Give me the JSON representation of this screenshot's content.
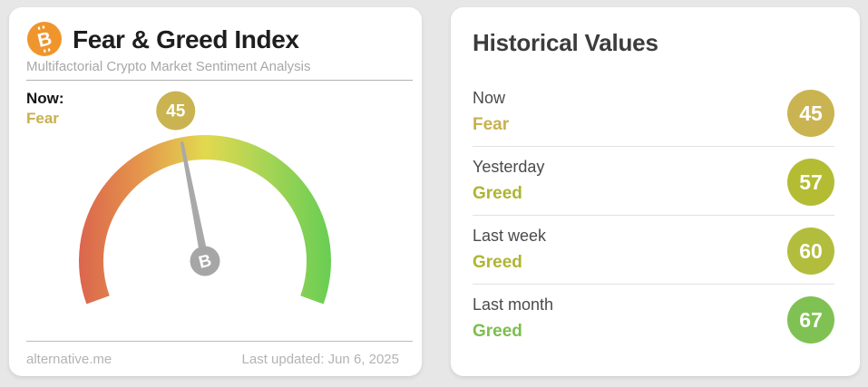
{
  "page": {
    "background_color": "#e7e7e7"
  },
  "gauge_card": {
    "icon": {
      "glyph": "B",
      "color": "#f0952c"
    },
    "title": "Fear & Greed Index",
    "subtitle": "Multifactorial Crypto Market Sentiment Analysis",
    "now": {
      "label": "Now:",
      "classification": "Fear",
      "color": "#c8b04e"
    },
    "gauge": {
      "value": 45,
      "min": 0,
      "max": 100,
      "start_angle_deg": 200,
      "span_deg": 220,
      "badge_color": "#c9b451",
      "needle_color": "#a9a9a9",
      "hub_color": "#a6a6a6",
      "hub_glyph": "B",
      "arc_colors": [
        "#db654d",
        "#e5974c",
        "#e2d94f",
        "#a5d455",
        "#68ce53"
      ]
    },
    "footer": {
      "source": "alternative.me",
      "last_updated": "Last updated: Jun 6, 2025"
    }
  },
  "history_card": {
    "title": "Historical Values",
    "rows": [
      {
        "label": "Now",
        "classification": "Fear",
        "value": "45",
        "badge_color": "#c9b451",
        "classification_color": "#c8b04e"
      },
      {
        "label": "Yesterday",
        "classification": "Greed",
        "value": "57",
        "badge_color": "#b4bc34",
        "classification_color": "#aeb531"
      },
      {
        "label": "Last week",
        "classification": "Greed",
        "value": "60",
        "badge_color": "#b3bd3d",
        "classification_color": "#aeb531"
      },
      {
        "label": "Last month",
        "classification": "Greed",
        "value": "67",
        "badge_color": "#80c153",
        "classification_color": "#7cbe4e"
      }
    ]
  },
  "chart_data": {
    "type": "gauge",
    "title": "Fear & Greed Index",
    "value": 45,
    "range": [
      0,
      100
    ],
    "classification": "Fear",
    "history": [
      {
        "label": "Now",
        "value": 45,
        "classification": "Fear"
      },
      {
        "label": "Yesterday",
        "value": 57,
        "classification": "Greed"
      },
      {
        "label": "Last week",
        "value": 60,
        "classification": "Greed"
      },
      {
        "label": "Last month",
        "value": 67,
        "classification": "Greed"
      }
    ]
  }
}
